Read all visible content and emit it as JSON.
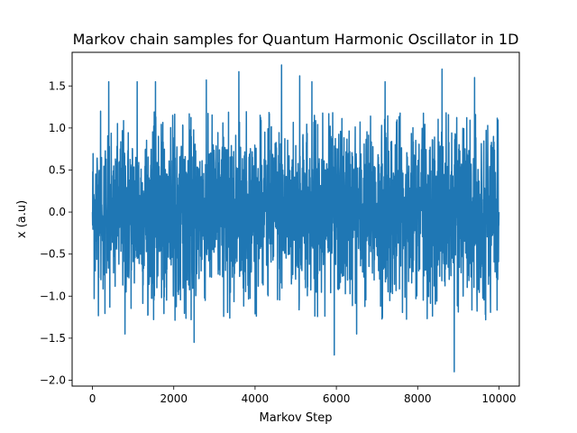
{
  "chart_data": {
    "type": "line",
    "title": "Markov chain samples for Quantum Harmonic Oscillator in 1D",
    "xlabel": "Markov Step",
    "ylabel": "x (a.u)",
    "xlim": [
      -500,
      10500
    ],
    "ylim": [
      -2.07,
      1.9
    ],
    "xticks": [
      0,
      2000,
      4000,
      6000,
      8000,
      10000
    ],
    "xtick_labels": [
      "0",
      "2000",
      "4000",
      "6000",
      "8000",
      "10000"
    ],
    "yticks": [
      -2.0,
      -1.5,
      -1.0,
      -0.5,
      0.0,
      0.5,
      1.0,
      1.5
    ],
    "ytick_labels": [
      "−2.0",
      "−1.5",
      "−1.0",
      "−0.5",
      "0.0",
      "0.5",
      "1.0",
      "1.5"
    ],
    "grid": false,
    "series_color": "#1f77b4",
    "series": [
      {
        "n_points": 10000,
        "x_start": 0,
        "x_end": 10000,
        "notable_values": [
          {
            "x": 0,
            "y": 0.0
          },
          {
            "x": 200,
            "y": 1.2
          },
          {
            "x": 400,
            "y": 1.55
          },
          {
            "x": 800,
            "y": -1.45
          },
          {
            "x": 1100,
            "y": 1.55
          },
          {
            "x": 1550,
            "y": 1.55
          },
          {
            "x": 2500,
            "y": -1.55
          },
          {
            "x": 2800,
            "y": 1.57
          },
          {
            "x": 3600,
            "y": 1.67
          },
          {
            "x": 4650,
            "y": 1.75
          },
          {
            "x": 5100,
            "y": 1.62
          },
          {
            "x": 5400,
            "y": 1.55
          },
          {
            "x": 5950,
            "y": -1.7
          },
          {
            "x": 6500,
            "y": -1.45
          },
          {
            "x": 7200,
            "y": 1.55
          },
          {
            "x": 8600,
            "y": 1.7
          },
          {
            "x": 8900,
            "y": -1.9
          },
          {
            "x": 9400,
            "y": 1.6
          },
          {
            "x": 10000,
            "y": 0.0
          }
        ],
        "typical_range": [
          -1.3,
          1.2
        ]
      }
    ]
  }
}
